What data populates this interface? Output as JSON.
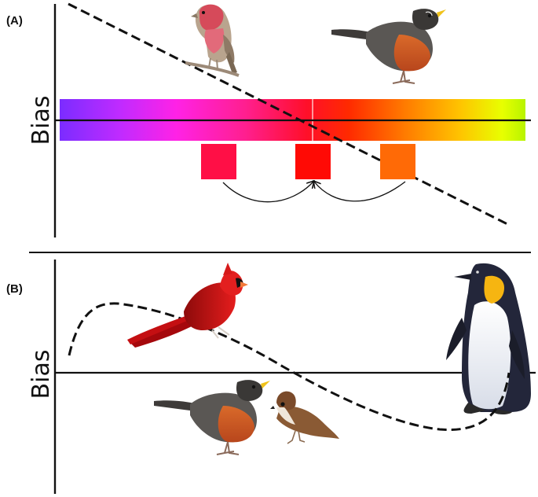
{
  "panel_a": {
    "label": "(A)",
    "y_axis_label": "Bias",
    "gradient_colors": [
      "#7b2cff",
      "#c02bff",
      "#ff22e6",
      "#ff1f8e",
      "#ff0f2a",
      "#ff2a00",
      "#ff7a00",
      "#ffc400",
      "#e8ff00",
      "#b8f400"
    ],
    "swatches": [
      {
        "name": "pink-red",
        "color": "#ff0f46"
      },
      {
        "name": "red",
        "color": "#ff0a05"
      },
      {
        "name": "orange",
        "color": "#ff6a06"
      }
    ],
    "birds": [
      "house-finch",
      "american-robin"
    ]
  },
  "panel_b": {
    "label": "(B)",
    "y_axis_label": "Bias",
    "birds": [
      "northern-cardinal",
      "american-robin",
      "tree-sparrow",
      "emperor-penguin"
    ]
  }
}
